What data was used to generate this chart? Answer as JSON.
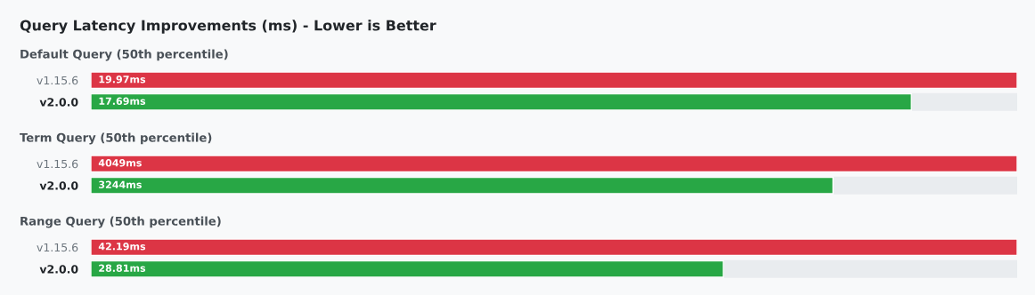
{
  "chart_data": [
    {
      "type": "bar",
      "orientation": "horizontal",
      "title": "Query Latency Improvements (ms) - Lower is Better",
      "subtitle": "Default Query (50th percentile)",
      "categories": [
        "v1.15.6",
        "v2.0.0"
      ],
      "values": [
        19.97,
        17.69
      ],
      "colors": [
        "#dc3545",
        "#28a745"
      ],
      "value_labels": [
        "19.97ms",
        "17.69ms"
      ],
      "xlim": [
        0,
        19.97
      ],
      "tick_labels": "y"
    },
    {
      "type": "bar",
      "orientation": "horizontal",
      "subtitle": "Term Query (50th percentile)",
      "categories": [
        "v1.15.6",
        "v2.0.0"
      ],
      "values": [
        4049,
        3244
      ],
      "colors": [
        "#dc3545",
        "#28a745"
      ],
      "value_labels": [
        "4049ms",
        "3244ms"
      ],
      "xlim": [
        0,
        4049
      ],
      "tick_labels": "y"
    },
    {
      "type": "bar",
      "orientation": "horizontal",
      "subtitle": "Range Query (50th percentile)",
      "categories": [
        "v1.15.6",
        "v2.0.0"
      ],
      "values": [
        42.19,
        28.81
      ],
      "colors": [
        "#dc3545",
        "#28a745"
      ],
      "value_labels": [
        "42.19ms",
        "28.81ms"
      ],
      "xlim": [
        0,
        42.19
      ],
      "tick_labels": "y"
    }
  ]
}
